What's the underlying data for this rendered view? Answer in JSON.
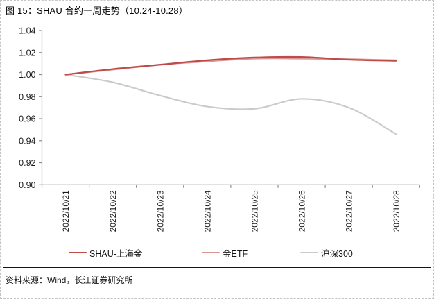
{
  "figure": {
    "title": "图 15：SHAU 合约一周走势（10.24-10.28）",
    "source": "资料来源：Wind，长江证券研究所"
  },
  "chart_data": {
    "type": "line",
    "title": "SHAU 合约一周走势（10.24-10.28）",
    "x": [
      "2022/10/21",
      "2022/10/22",
      "2022/10/23",
      "2022/10/24",
      "2022/10/25",
      "2022/10/26",
      "2022/10/27",
      "2022/10/28"
    ],
    "series": [
      {
        "name": "SHAU-上海金",
        "color": "#BE4B48",
        "values": [
          1.0,
          1.005,
          1.009,
          1.013,
          1.0155,
          1.016,
          1.0135,
          1.0125
        ]
      },
      {
        "name": "金ETF",
        "color": "#D99694",
        "values": [
          1.0,
          1.0045,
          1.009,
          1.012,
          1.0145,
          1.0145,
          1.014,
          1.013
        ]
      },
      {
        "name": "沪深300",
        "color": "#CBCBCB",
        "values": [
          1.0,
          0.993,
          0.981,
          0.971,
          0.969,
          0.978,
          0.97,
          0.946
        ]
      }
    ],
    "ylim": [
      0.9,
      1.04
    ],
    "yticks": [
      1.04,
      1.02,
      1.0,
      0.98,
      0.96,
      0.94,
      0.92,
      0.9
    ],
    "xlabel": "",
    "ylabel": "",
    "grid": false,
    "smooth": true,
    "legend_position": "bottom",
    "axis_color": "#8c8c8c",
    "tick_text_color": "#1a1a1a"
  }
}
